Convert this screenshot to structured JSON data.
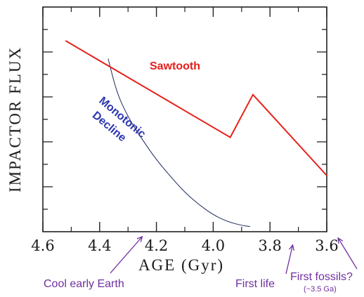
{
  "chart_data": {
    "type": "line",
    "xlabel": "AGE (Gyr)",
    "ylabel": "IMPACTOR FLUX",
    "xlim": [
      4.6,
      3.6
    ],
    "x_ticks": [
      "4.6",
      "4.4",
      "4.2",
      "4.0",
      "3.8",
      "3.6"
    ],
    "y_ticks_labeled": false,
    "series": [
      {
        "name": "Sawtooth",
        "color": "#e8201a",
        "x": [
          4.52,
          3.94,
          3.86,
          3.6
        ],
        "y": [
          0.85,
          0.42,
          0.61,
          0.25
        ]
      },
      {
        "name": "Monotonic Decline",
        "color": "#1c2a5c",
        "x": [
          4.37,
          4.34,
          4.3,
          4.25,
          4.2,
          4.15,
          4.1,
          4.05,
          4.0,
          3.95,
          3.9,
          3.87
        ],
        "y": [
          0.77,
          0.62,
          0.51,
          0.41,
          0.32,
          0.245,
          0.175,
          0.12,
          0.075,
          0.045,
          0.028,
          0.023
        ]
      }
    ],
    "series_colors": {
      "sawtooth_label": "#e81c1c",
      "monotonic_label": "#2c34b0",
      "notes": "#7030a0"
    },
    "annotations": [
      {
        "text": "Cool early Earth",
        "arrow_to_x": 4.25
      },
      {
        "text": "First life",
        "arrow_to_x": 3.72
      },
      {
        "text": "First fossils?",
        "arrow_to_x": 3.56
      },
      {
        "text": "(~3.5 Ga)",
        "arrow_to_x": 3.56
      }
    ]
  }
}
